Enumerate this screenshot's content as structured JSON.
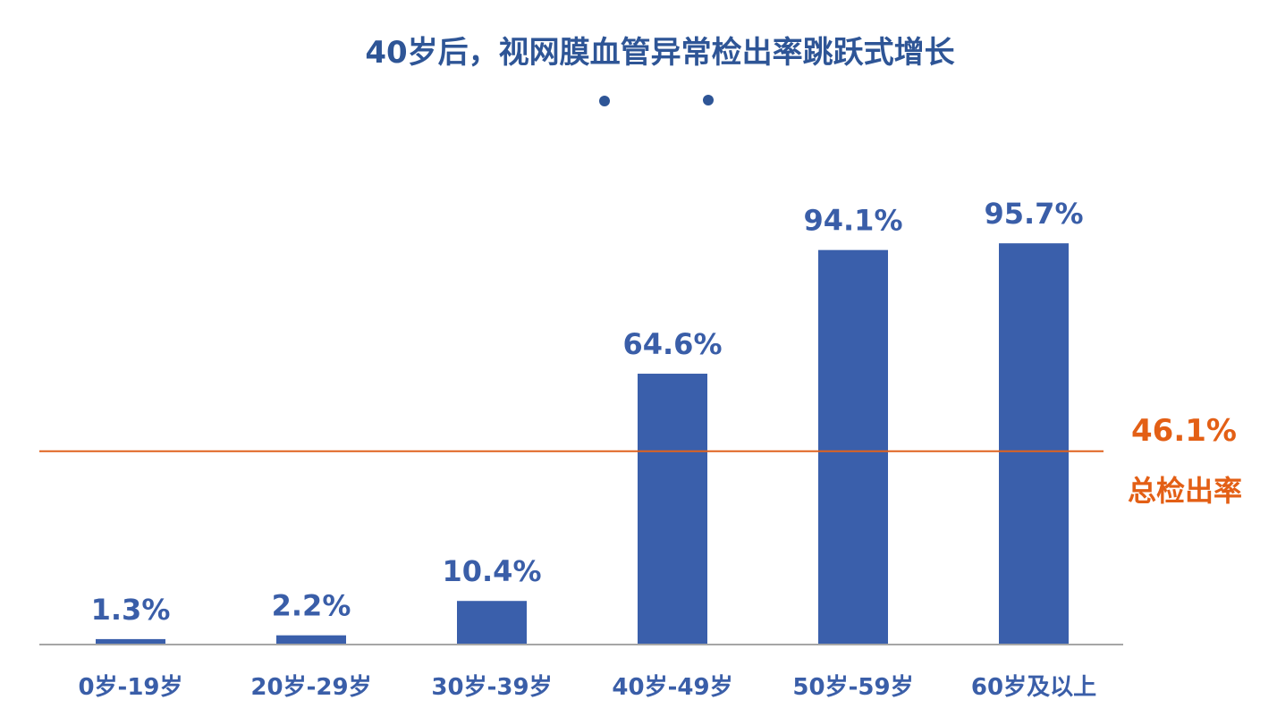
{
  "chart_data": {
    "type": "bar",
    "title": "40岁后，视网膜血管异常检出率跳跃式增长",
    "categories": [
      "0岁-19岁",
      "20岁-29岁",
      "30岁-39岁",
      "40岁-49岁",
      "50岁-59岁",
      "60岁及以上"
    ],
    "values": [
      1.3,
      2.2,
      10.4,
      64.6,
      94.1,
      95.7
    ],
    "value_labels": [
      "1.3%",
      "2.2%",
      "10.4%",
      "64.6%",
      "94.1%",
      "95.7%"
    ],
    "ylim": [
      0,
      100
    ],
    "grid": false,
    "reference_line": {
      "value": 46.1,
      "value_label": "46.1%",
      "label": "总检出率"
    },
    "colors": {
      "bar": "#3a5fab",
      "reference": "#e0621e",
      "title": "#2e5596",
      "axis": "#a6a6a6"
    }
  }
}
